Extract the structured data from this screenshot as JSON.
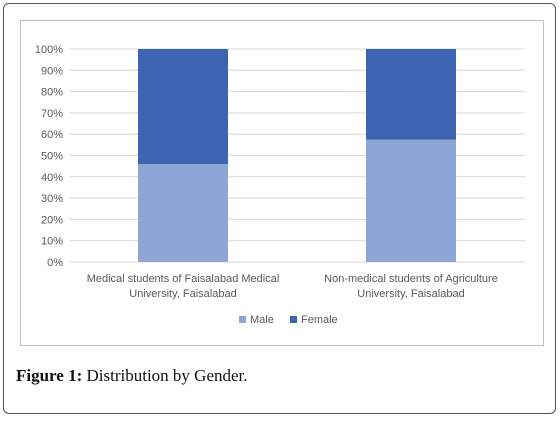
{
  "chart_data": {
    "type": "bar",
    "stacked": true,
    "percent": true,
    "categories": [
      [
        "Medical students of Faisalabad Medical",
        "University, Faisalabad"
      ],
      [
        "Non-medical students of Agriculture",
        "University, Faisalabad"
      ]
    ],
    "series": [
      {
        "name": "Male",
        "color": "#8ea5d6",
        "values": [
          46,
          57.5
        ]
      },
      {
        "name": "Female",
        "color": "#3c64b0",
        "values": [
          54,
          42.5
        ]
      }
    ],
    "y_ticks": [
      "0%",
      "10%",
      "20%",
      "30%",
      "40%",
      "50%",
      "60%",
      "70%",
      "80%",
      "90%",
      "100%"
    ],
    "ylim": [
      0,
      100
    ],
    "grid": true,
    "legend_position": "bottom"
  },
  "caption": {
    "label": "Figure 1:",
    "text": " Distribution by Gender."
  }
}
